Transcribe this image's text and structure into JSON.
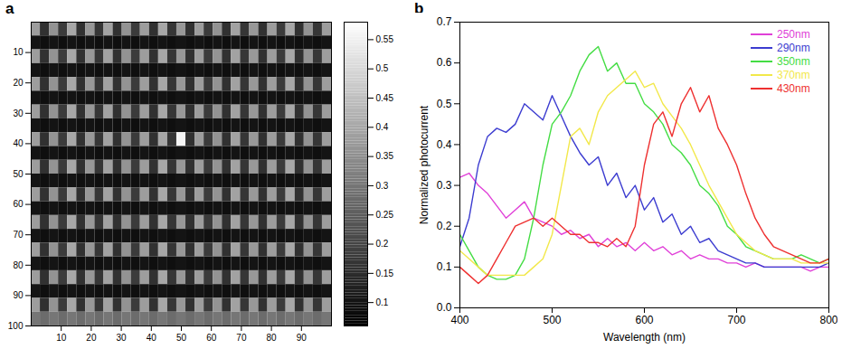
{
  "chart_data": [
    {
      "type": "heatmap",
      "title": "a",
      "color": "gray",
      "xlim": [
        0,
        100
      ],
      "ylim": [
        0,
        100
      ],
      "xticks": [
        10,
        20,
        30,
        40,
        50,
        60,
        70,
        80,
        90
      ],
      "yticks": [
        10,
        20,
        30,
        40,
        50,
        60,
        70,
        80,
        90,
        100
      ],
      "color_range": [
        0.06,
        0.58
      ],
      "color_ticks": [
        0.1,
        0.15,
        0.2,
        0.25,
        0.3,
        0.35,
        0.4,
        0.45,
        0.5,
        0.55
      ],
      "cells": [
        [
          0.38,
          0.16,
          0.36,
          0.18,
          0.4,
          0.16,
          0.37,
          0.17,
          0.39,
          0.16,
          0.36,
          0.18,
          0.38,
          0.16,
          0.4,
          0.17,
          0.37,
          0.16,
          0.38,
          0.18,
          0.36,
          0.16,
          0.39,
          0.17,
          0.37,
          0.16,
          0.38,
          0.18,
          0.4,
          0.16,
          0.36,
          0.17,
          0.38
        ],
        [
          0.1,
          0.09,
          0.1,
          0.09,
          0.1,
          0.09,
          0.1,
          0.09,
          0.1,
          0.09,
          0.1,
          0.09,
          0.1,
          0.09,
          0.1,
          0.09,
          0.1,
          0.09,
          0.1,
          0.09,
          0.1,
          0.09,
          0.1,
          0.09,
          0.1,
          0.09,
          0.1,
          0.09,
          0.1,
          0.09,
          0.1,
          0.09,
          0.1
        ],
        [
          0.38,
          0.16,
          0.36,
          0.18,
          0.4,
          0.16,
          0.37,
          0.17,
          0.39,
          0.16,
          0.36,
          0.18,
          0.38,
          0.16,
          0.4,
          0.17,
          0.37,
          0.16,
          0.38,
          0.18,
          0.36,
          0.16,
          0.39,
          0.17,
          0.37,
          0.16,
          0.38,
          0.18,
          0.4,
          0.16,
          0.36,
          0.17,
          0.38
        ],
        [
          0.1,
          0.09,
          0.1,
          0.09,
          0.1,
          0.09,
          0.1,
          0.09,
          0.1,
          0.09,
          0.1,
          0.09,
          0.1,
          0.09,
          0.1,
          0.09,
          0.1,
          0.09,
          0.1,
          0.09,
          0.1,
          0.09,
          0.1,
          0.09,
          0.1,
          0.09,
          0.1,
          0.09,
          0.1,
          0.09,
          0.1,
          0.09,
          0.1
        ],
        [
          0.38,
          0.16,
          0.36,
          0.18,
          0.4,
          0.16,
          0.37,
          0.17,
          0.39,
          0.16,
          0.36,
          0.18,
          0.38,
          0.16,
          0.4,
          0.17,
          0.37,
          0.16,
          0.38,
          0.18,
          0.36,
          0.16,
          0.39,
          0.17,
          0.37,
          0.16,
          0.38,
          0.18,
          0.4,
          0.16,
          0.36,
          0.17,
          0.38
        ],
        [
          0.1,
          0.09,
          0.1,
          0.09,
          0.1,
          0.09,
          0.1,
          0.09,
          0.1,
          0.09,
          0.1,
          0.09,
          0.1,
          0.09,
          0.1,
          0.09,
          0.1,
          0.09,
          0.1,
          0.09,
          0.1,
          0.09,
          0.1,
          0.09,
          0.1,
          0.09,
          0.1,
          0.09,
          0.1,
          0.09,
          0.1,
          0.09,
          0.1
        ],
        [
          0.38,
          0.16,
          0.36,
          0.18,
          0.4,
          0.16,
          0.37,
          0.17,
          0.39,
          0.16,
          0.36,
          0.18,
          0.38,
          0.16,
          0.4,
          0.17,
          0.37,
          0.16,
          0.38,
          0.18,
          0.36,
          0.16,
          0.39,
          0.17,
          0.37,
          0.16,
          0.38,
          0.18,
          0.4,
          0.16,
          0.36,
          0.17,
          0.38
        ],
        [
          0.1,
          0.09,
          0.1,
          0.09,
          0.1,
          0.09,
          0.1,
          0.09,
          0.1,
          0.09,
          0.1,
          0.09,
          0.1,
          0.09,
          0.1,
          0.09,
          0.1,
          0.09,
          0.1,
          0.09,
          0.1,
          0.09,
          0.1,
          0.09,
          0.1,
          0.09,
          0.1,
          0.09,
          0.1,
          0.09,
          0.1,
          0.09,
          0.1
        ],
        [
          0.38,
          0.16,
          0.36,
          0.18,
          0.4,
          0.16,
          0.37,
          0.17,
          0.39,
          0.16,
          0.36,
          0.18,
          0.38,
          0.16,
          0.4,
          0.17,
          0.56,
          0.16,
          0.38,
          0.18,
          0.36,
          0.16,
          0.39,
          0.17,
          0.37,
          0.16,
          0.38,
          0.18,
          0.4,
          0.16,
          0.36,
          0.17,
          0.38
        ],
        [
          0.1,
          0.09,
          0.1,
          0.09,
          0.1,
          0.09,
          0.1,
          0.09,
          0.1,
          0.09,
          0.1,
          0.09,
          0.1,
          0.09,
          0.1,
          0.09,
          0.1,
          0.09,
          0.1,
          0.09,
          0.1,
          0.09,
          0.1,
          0.09,
          0.1,
          0.09,
          0.1,
          0.09,
          0.1,
          0.09,
          0.1,
          0.09,
          0.1
        ],
        [
          0.38,
          0.16,
          0.36,
          0.18,
          0.4,
          0.16,
          0.37,
          0.17,
          0.39,
          0.16,
          0.36,
          0.18,
          0.38,
          0.16,
          0.4,
          0.17,
          0.37,
          0.16,
          0.38,
          0.18,
          0.36,
          0.16,
          0.39,
          0.17,
          0.37,
          0.16,
          0.38,
          0.18,
          0.4,
          0.16,
          0.36,
          0.17,
          0.38
        ],
        [
          0.1,
          0.09,
          0.1,
          0.09,
          0.1,
          0.09,
          0.1,
          0.09,
          0.1,
          0.09,
          0.1,
          0.09,
          0.1,
          0.09,
          0.1,
          0.09,
          0.1,
          0.09,
          0.1,
          0.09,
          0.1,
          0.09,
          0.1,
          0.09,
          0.1,
          0.09,
          0.1,
          0.09,
          0.1,
          0.09,
          0.1,
          0.09,
          0.1
        ],
        [
          0.38,
          0.16,
          0.36,
          0.18,
          0.4,
          0.16,
          0.37,
          0.17,
          0.39,
          0.16,
          0.36,
          0.18,
          0.38,
          0.16,
          0.4,
          0.17,
          0.37,
          0.16,
          0.38,
          0.18,
          0.36,
          0.16,
          0.39,
          0.17,
          0.37,
          0.16,
          0.38,
          0.18,
          0.4,
          0.16,
          0.36,
          0.17,
          0.38
        ],
        [
          0.1,
          0.09,
          0.1,
          0.09,
          0.1,
          0.09,
          0.1,
          0.09,
          0.1,
          0.09,
          0.1,
          0.09,
          0.1,
          0.09,
          0.1,
          0.09,
          0.1,
          0.09,
          0.1,
          0.09,
          0.1,
          0.09,
          0.1,
          0.09,
          0.1,
          0.09,
          0.1,
          0.09,
          0.1,
          0.09,
          0.1,
          0.09,
          0.1
        ],
        [
          0.38,
          0.16,
          0.36,
          0.18,
          0.4,
          0.16,
          0.37,
          0.17,
          0.39,
          0.16,
          0.36,
          0.18,
          0.38,
          0.16,
          0.4,
          0.17,
          0.37,
          0.16,
          0.38,
          0.18,
          0.36,
          0.16,
          0.39,
          0.17,
          0.37,
          0.16,
          0.38,
          0.18,
          0.4,
          0.16,
          0.36,
          0.17,
          0.38
        ],
        [
          0.1,
          0.09,
          0.1,
          0.09,
          0.1,
          0.09,
          0.1,
          0.09,
          0.1,
          0.09,
          0.1,
          0.09,
          0.1,
          0.09,
          0.1,
          0.09,
          0.1,
          0.09,
          0.1,
          0.09,
          0.1,
          0.09,
          0.1,
          0.09,
          0.1,
          0.09,
          0.1,
          0.09,
          0.1,
          0.09,
          0.1,
          0.09,
          0.1
        ],
        [
          0.38,
          0.16,
          0.36,
          0.18,
          0.4,
          0.16,
          0.37,
          0.17,
          0.39,
          0.16,
          0.36,
          0.18,
          0.38,
          0.16,
          0.4,
          0.17,
          0.37,
          0.16,
          0.38,
          0.18,
          0.36,
          0.16,
          0.39,
          0.17,
          0.37,
          0.16,
          0.38,
          0.18,
          0.4,
          0.16,
          0.36,
          0.17,
          0.38
        ],
        [
          0.1,
          0.09,
          0.1,
          0.09,
          0.1,
          0.09,
          0.1,
          0.09,
          0.1,
          0.09,
          0.1,
          0.09,
          0.1,
          0.09,
          0.1,
          0.09,
          0.1,
          0.09,
          0.1,
          0.09,
          0.1,
          0.09,
          0.1,
          0.09,
          0.1,
          0.09,
          0.1,
          0.09,
          0.1,
          0.09,
          0.1,
          0.09,
          0.1
        ],
        [
          0.38,
          0.16,
          0.36,
          0.18,
          0.4,
          0.16,
          0.37,
          0.17,
          0.39,
          0.16,
          0.36,
          0.18,
          0.38,
          0.16,
          0.4,
          0.17,
          0.37,
          0.16,
          0.38,
          0.18,
          0.36,
          0.16,
          0.39,
          0.17,
          0.37,
          0.16,
          0.38,
          0.18,
          0.4,
          0.16,
          0.36,
          0.17,
          0.38
        ],
        [
          0.1,
          0.09,
          0.1,
          0.09,
          0.1,
          0.09,
          0.1,
          0.09,
          0.1,
          0.09,
          0.1,
          0.09,
          0.1,
          0.09,
          0.1,
          0.09,
          0.1,
          0.09,
          0.1,
          0.09,
          0.1,
          0.09,
          0.1,
          0.09,
          0.1,
          0.09,
          0.1,
          0.09,
          0.1,
          0.09,
          0.1,
          0.09,
          0.1
        ],
        [
          0.38,
          0.16,
          0.36,
          0.18,
          0.4,
          0.16,
          0.37,
          0.17,
          0.39,
          0.16,
          0.36,
          0.18,
          0.38,
          0.16,
          0.4,
          0.17,
          0.37,
          0.16,
          0.38,
          0.18,
          0.36,
          0.16,
          0.39,
          0.17,
          0.37,
          0.16,
          0.38,
          0.18,
          0.4,
          0.16,
          0.36,
          0.17,
          0.38
        ],
        [
          0.3,
          0.28,
          0.3,
          0.28,
          0.3,
          0.28,
          0.3,
          0.28,
          0.3,
          0.28,
          0.3,
          0.28,
          0.3,
          0.28,
          0.3,
          0.28,
          0.3,
          0.28,
          0.3,
          0.28,
          0.3,
          0.28,
          0.3,
          0.28,
          0.3,
          0.28,
          0.3,
          0.28,
          0.3,
          0.28,
          0.3,
          0.28,
          0.3
        ]
      ]
    },
    {
      "type": "line",
      "title": "b",
      "x_label": "Wavelength (nm)",
      "y_label": "Normalized photocurrent",
      "xlim": [
        400,
        800
      ],
      "ylim": [
        0,
        0.7
      ],
      "xticks": [
        400,
        500,
        600,
        700,
        800
      ],
      "yticks": [
        {
          "value": 0,
          "label": "0.0"
        },
        0.1,
        0.2,
        0.3,
        0.4,
        0.5,
        0.6,
        0.7
      ],
      "legend": "top-right",
      "x": [
        400,
        410,
        420,
        430,
        440,
        450,
        460,
        470,
        480,
        490,
        500,
        510,
        520,
        530,
        540,
        550,
        560,
        570,
        580,
        590,
        600,
        610,
        620,
        630,
        640,
        650,
        660,
        670,
        680,
        690,
        700,
        710,
        720,
        730,
        740,
        750,
        760,
        770,
        780,
        790,
        800
      ],
      "series": [
        {
          "name": "250nm",
          "color": "#e040d8",
          "values": [
            0.32,
            0.33,
            0.3,
            0.28,
            0.25,
            0.22,
            0.24,
            0.26,
            0.22,
            0.21,
            0.2,
            0.18,
            0.19,
            0.17,
            0.18,
            0.15,
            0.17,
            0.15,
            0.16,
            0.14,
            0.16,
            0.14,
            0.15,
            0.13,
            0.14,
            0.12,
            0.13,
            0.12,
            0.12,
            0.11,
            0.11,
            0.1,
            0.11,
            0.1,
            0.1,
            0.1,
            0.1,
            0.1,
            0.09,
            0.1,
            0.1
          ]
        },
        {
          "name": "290nm",
          "color": "#3c3cd0",
          "values": [
            0.15,
            0.22,
            0.35,
            0.42,
            0.44,
            0.43,
            0.45,
            0.5,
            0.48,
            0.46,
            0.52,
            0.47,
            0.42,
            0.38,
            0.35,
            0.37,
            0.3,
            0.33,
            0.27,
            0.3,
            0.24,
            0.27,
            0.21,
            0.23,
            0.18,
            0.2,
            0.16,
            0.17,
            0.14,
            0.13,
            0.12,
            0.11,
            0.11,
            0.1,
            0.1,
            0.1,
            0.1,
            0.1,
            0.1,
            0.1,
            0.11
          ]
        },
        {
          "name": "350nm",
          "color": "#44dd44",
          "values": [
            0.18,
            0.14,
            0.1,
            0.08,
            0.07,
            0.07,
            0.08,
            0.12,
            0.22,
            0.35,
            0.45,
            0.48,
            0.52,
            0.58,
            0.62,
            0.64,
            0.58,
            0.6,
            0.55,
            0.55,
            0.5,
            0.48,
            0.45,
            0.4,
            0.38,
            0.35,
            0.3,
            0.28,
            0.25,
            0.2,
            0.18,
            0.15,
            0.14,
            0.13,
            0.12,
            0.12,
            0.12,
            0.13,
            0.12,
            0.11,
            0.12
          ]
        },
        {
          "name": "370nm",
          "color": "#f2e84a",
          "values": [
            0.14,
            0.12,
            0.1,
            0.08,
            0.08,
            0.08,
            0.08,
            0.08,
            0.1,
            0.12,
            0.18,
            0.3,
            0.42,
            0.44,
            0.4,
            0.48,
            0.52,
            0.54,
            0.56,
            0.58,
            0.54,
            0.55,
            0.5,
            0.47,
            0.44,
            0.4,
            0.35,
            0.3,
            0.26,
            0.22,
            0.18,
            0.16,
            0.14,
            0.13,
            0.12,
            0.12,
            0.12,
            0.11,
            0.11,
            0.11,
            0.11
          ]
        },
        {
          "name": "430nm",
          "color": "#ee3030",
          "values": [
            0.1,
            0.08,
            0.06,
            0.08,
            0.12,
            0.16,
            0.2,
            0.21,
            0.22,
            0.2,
            0.22,
            0.2,
            0.18,
            0.18,
            0.16,
            0.16,
            0.15,
            0.17,
            0.15,
            0.2,
            0.35,
            0.45,
            0.48,
            0.42,
            0.5,
            0.54,
            0.48,
            0.52,
            0.44,
            0.4,
            0.35,
            0.28,
            0.22,
            0.18,
            0.15,
            0.14,
            0.13,
            0.12,
            0.11,
            0.11,
            0.12
          ]
        }
      ]
    }
  ]
}
